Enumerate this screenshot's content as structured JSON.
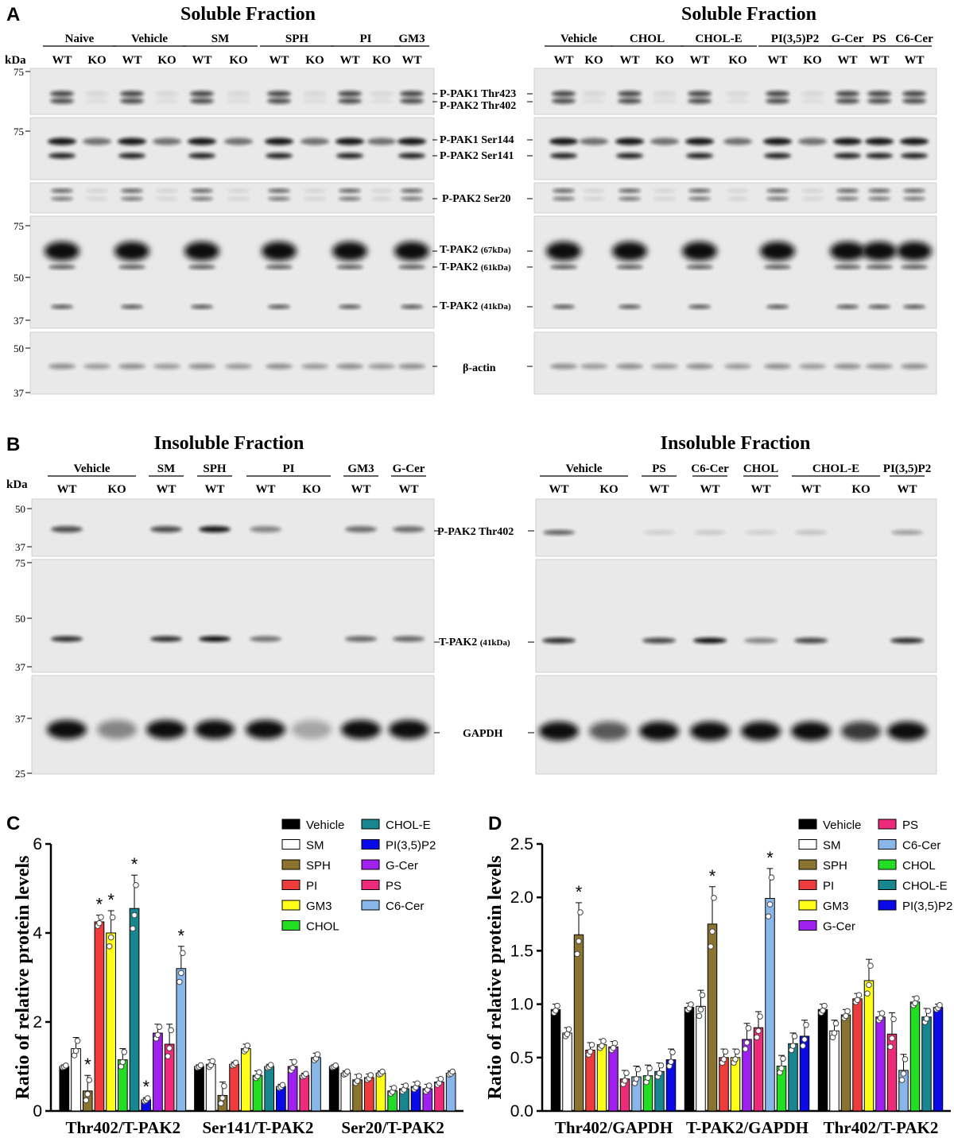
{
  "panelA": {
    "letter": "A",
    "left": {
      "title": "Soluble Fraction",
      "kda": "kDa",
      "groups": [
        {
          "name": "Naive",
          "lanes": [
            "WT",
            "KO"
          ]
        },
        {
          "name": "Vehicle",
          "lanes": [
            "WT",
            "KO"
          ]
        },
        {
          "name": "SM",
          "lanes": [
            "WT",
            "KO"
          ]
        },
        {
          "name": "SPH",
          "lanes": [
            "WT",
            "KO"
          ]
        },
        {
          "name": "PI",
          "lanes": [
            "WT",
            "KO"
          ]
        },
        {
          "name": "GM3",
          "lanes": [
            "WT"
          ]
        }
      ],
      "markers": [
        "75",
        "75",
        "75",
        "50",
        "37",
        "50",
        "37"
      ]
    },
    "right": {
      "title": "Soluble Fraction",
      "groups": [
        {
          "name": "Vehicle",
          "lanes": [
            "WT",
            "KO"
          ]
        },
        {
          "name": "CHOL",
          "lanes": [
            "WT",
            "KO"
          ]
        },
        {
          "name": "CHOL-E",
          "lanes": [
            "WT",
            "KO"
          ]
        },
        {
          "name": "PI(3,5)P2",
          "lanes": [
            "WT",
            "KO"
          ]
        },
        {
          "name": "G-Cer",
          "lanes": [
            "WT"
          ]
        },
        {
          "name": "PS",
          "lanes": [
            "WT"
          ]
        },
        {
          "name": "C6-Cer",
          "lanes": [
            "WT"
          ]
        }
      ]
    },
    "band_labels": [
      "P-PAK1 Thr423",
      "P-PAK2 Thr402",
      "P-PAK1 Ser144",
      "P-PAK2 Ser141",
      "P-PAK2 Ser20",
      "T-PAK2",
      "(67kDa)",
      "T-PAK2",
      "(61kDa)",
      "T-PAK2",
      "(41kDa)",
      "β-actin"
    ]
  },
  "panelB": {
    "letter": "B",
    "left": {
      "title": "Insoluble Fraction",
      "kda": "kDa",
      "groups": [
        {
          "name": "Vehicle",
          "lanes": [
            "WT",
            "KO"
          ]
        },
        {
          "name": "SM",
          "lanes": [
            "WT"
          ]
        },
        {
          "name": "SPH",
          "lanes": [
            "WT"
          ]
        },
        {
          "name": "PI",
          "lanes": [
            "WT",
            "KO"
          ]
        },
        {
          "name": "GM3",
          "lanes": [
            "WT"
          ]
        },
        {
          "name": "G-Cer",
          "lanes": [
            "WT"
          ]
        }
      ],
      "markers": [
        "50",
        "37",
        "75",
        "50",
        "37",
        "37",
        "25"
      ]
    },
    "right": {
      "title": "Insoluble Fraction",
      "groups": [
        {
          "name": "Vehicle",
          "lanes": [
            "WT",
            "KO"
          ]
        },
        {
          "name": "PS",
          "lanes": [
            "WT"
          ]
        },
        {
          "name": "C6-Cer",
          "lanes": [
            "WT"
          ]
        },
        {
          "name": "CHOL",
          "lanes": [
            "WT"
          ]
        },
        {
          "name": "CHOL-E",
          "lanes": [
            "WT",
            "KO"
          ]
        },
        {
          "name": "PI(3,5)P2",
          "lanes": [
            "WT"
          ]
        }
      ]
    },
    "band_labels": [
      "P-PAK2 Thr402",
      "T-PAK2",
      "(41kDa)",
      "GAPDH"
    ]
  },
  "colors": {
    "Vehicle": "#000000",
    "SM": "#ffffff",
    "SPH": "#8b7330",
    "PI": "#ee3b3b",
    "GM3": "#ffff1a",
    "CHOL": "#22dd22",
    "CHOL-E": "#17868f",
    "PI(3,5)P2": "#0a0ae8",
    "G-Cer": "#a020f0",
    "PS": "#ee2a7b",
    "C6-Cer": "#8ab7ea"
  },
  "chart_data": [
    {
      "panel": "C",
      "type": "bar",
      "ylabel": "Ratio of relative protein levels",
      "ylim": [
        0,
        6
      ],
      "yticks": [
        "0",
        "2",
        "4",
        "6"
      ],
      "categories": [
        "Thr402/T-PAK2",
        "Ser141/T-PAK2",
        "Ser20/T-PAK2"
      ],
      "legend": [
        "Vehicle",
        "SM",
        "SPH",
        "PI",
        "GM3",
        "CHOL",
        "CHOL-E",
        "PI(3,5)P2",
        "G-Cer",
        "PS",
        "C6-Cer"
      ],
      "series": [
        {
          "name": "Vehicle",
          "values": [
            1.0,
            1.0,
            1.0
          ],
          "err": [
            0.03,
            0.04,
            0.03
          ]
        },
        {
          "name": "SM",
          "values": [
            1.4,
            1.05,
            0.85
          ],
          "err": [
            0.25,
            0.1,
            0.05
          ]
        },
        {
          "name": "SPH",
          "values": [
            0.45,
            0.35,
            0.7
          ],
          "err": [
            0.35,
            0.3,
            0.12
          ]
        },
        {
          "name": "PI",
          "values": [
            4.25,
            1.05,
            0.75
          ],
          "err": [
            0.15,
            0.05,
            0.08
          ]
        },
        {
          "name": "GM3",
          "values": [
            4.0,
            1.4,
            0.85
          ],
          "err": [
            0.5,
            0.1,
            0.05
          ]
        },
        {
          "name": "CHOL",
          "values": [
            1.15,
            0.8,
            0.45
          ],
          "err": [
            0.25,
            0.1,
            0.1
          ]
        },
        {
          "name": "CHOL-E",
          "values": [
            4.55,
            1.0,
            0.5
          ],
          "err": [
            0.75,
            0.05,
            0.1
          ]
        },
        {
          "name": "PI(3,5)P2",
          "values": [
            0.25,
            0.55,
            0.55
          ],
          "err": [
            0.05,
            0.05,
            0.1
          ]
        },
        {
          "name": "G-Cer",
          "values": [
            1.75,
            1.0,
            0.5
          ],
          "err": [
            0.2,
            0.15,
            0.1
          ]
        },
        {
          "name": "PS",
          "values": [
            1.5,
            0.8,
            0.65
          ],
          "err": [
            0.45,
            0.05,
            0.1
          ]
        },
        {
          "name": "C6-Cer",
          "values": [
            3.2,
            1.2,
            0.85
          ],
          "err": [
            0.5,
            0.1,
            0.05
          ]
        }
      ],
      "significant": [
        {
          "category": "Thr402/T-PAK2",
          "series": "SPH",
          "mark": "*"
        },
        {
          "category": "Thr402/T-PAK2",
          "series": "PI",
          "mark": "*"
        },
        {
          "category": "Thr402/T-PAK2",
          "series": "GM3",
          "mark": "*"
        },
        {
          "category": "Thr402/T-PAK2",
          "series": "CHOL-E",
          "mark": "*"
        },
        {
          "category": "Thr402/T-PAK2",
          "series": "PI(3,5)P2",
          "mark": "*"
        },
        {
          "category": "Thr402/T-PAK2",
          "series": "C6-Cer",
          "mark": "*"
        }
      ]
    },
    {
      "panel": "D",
      "type": "bar",
      "ylabel": "Ratio of relative protein levels",
      "ylim": [
        0,
        2.5
      ],
      "yticks": [
        "0.0",
        "0.5",
        "1.0",
        "1.5",
        "2.0",
        "2.5"
      ],
      "categories": [
        "Thr402/GAPDH",
        "T-PAK2/GAPDH",
        "Thr402/T-PAK2"
      ],
      "legend": [
        "Vehicle",
        "SM",
        "SPH",
        "PI",
        "GM3",
        "G-Cer",
        "PS",
        "C6-Cer",
        "CHOL",
        "CHOL-E",
        "PI(3,5)P2"
      ],
      "series": [
        {
          "name": "Vehicle",
          "values": [
            0.95,
            0.97,
            0.95
          ],
          "err": [
            0.05,
            0.04,
            0.05
          ]
        },
        {
          "name": "SM",
          "values": [
            0.73,
            0.98,
            0.75
          ],
          "err": [
            0.05,
            0.15,
            0.1
          ]
        },
        {
          "name": "SPH",
          "values": [
            1.65,
            1.75,
            0.9
          ],
          "err": [
            0.3,
            0.35,
            0.05
          ]
        },
        {
          "name": "PI",
          "values": [
            0.57,
            0.5,
            1.05
          ],
          "err": [
            0.07,
            0.08,
            0.05
          ]
        },
        {
          "name": "GM3",
          "values": [
            0.62,
            0.5,
            1.22
          ],
          "err": [
            0.05,
            0.08,
            0.2
          ]
        },
        {
          "name": "G-Cer",
          "values": [
            0.6,
            0.67,
            0.88
          ],
          "err": [
            0.05,
            0.15,
            0.05
          ]
        },
        {
          "name": "PS",
          "values": [
            0.3,
            0.78,
            0.72
          ],
          "err": [
            0.08,
            0.15,
            0.2
          ]
        },
        {
          "name": "C6-Cer",
          "values": [
            0.32,
            1.99,
            0.38
          ],
          "err": [
            0.1,
            0.28,
            0.15
          ]
        },
        {
          "name": "CHOL",
          "values": [
            0.33,
            0.42,
            1.02
          ],
          "err": [
            0.1,
            0.1,
            0.05
          ]
        },
        {
          "name": "CHOL-E",
          "values": [
            0.37,
            0.63,
            0.88
          ],
          "err": [
            0.08,
            0.1,
            0.08
          ]
        },
        {
          "name": "PI(3,5)P2",
          "values": [
            0.48,
            0.7,
            0.97
          ],
          "err": [
            0.1,
            0.15,
            0.03
          ]
        }
      ],
      "significant": [
        {
          "category": "Thr402/GAPDH",
          "series": "SPH",
          "mark": "*"
        },
        {
          "category": "T-PAK2/GAPDH",
          "series": "SPH",
          "mark": "*"
        },
        {
          "category": "T-PAK2/GAPDH",
          "series": "C6-Cer",
          "mark": "*"
        }
      ]
    }
  ]
}
